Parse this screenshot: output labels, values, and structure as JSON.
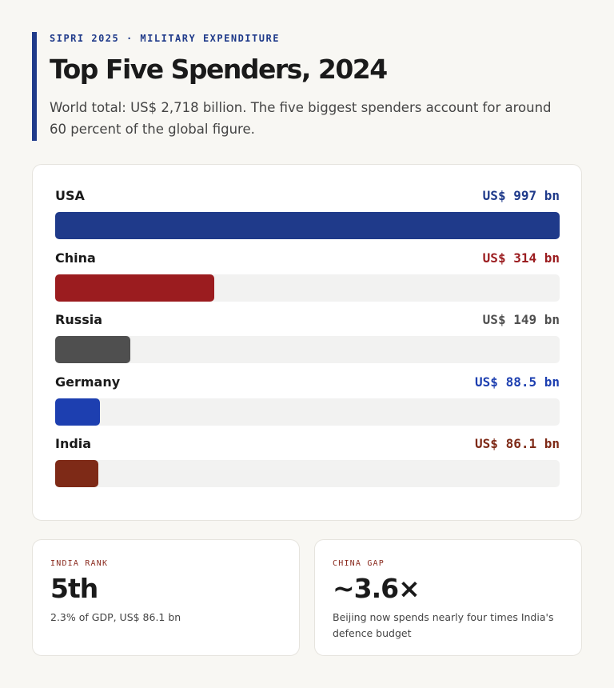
{
  "header": {
    "kicker": "SIPRI 2025 · MILITARY EXPENDITURE",
    "title": "Top Five Spenders, 2024",
    "subtitle": "World total: US$ 2,718 billion. The five biggest spenders account for around 60 percent of the global figure."
  },
  "chart_data": {
    "type": "bar",
    "orientation": "horizontal",
    "unit": "US$ bn",
    "xlim": [
      0,
      997
    ],
    "categories": [
      "USA",
      "China",
      "Russia",
      "Germany",
      "India"
    ],
    "values": [
      997,
      314,
      149,
      88.5,
      86.1
    ],
    "value_labels": [
      "US$ 997 bn",
      "US$ 314 bn",
      "US$ 149 bn",
      "US$ 88.5 bn",
      "US$ 86.1 bn"
    ],
    "colors": [
      "#1f3a8a",
      "#9b1c1f",
      "#4f4f4f",
      "#1d3fb0",
      "#7e2a17"
    ]
  },
  "stats": {
    "india": {
      "label": "INDIA RANK",
      "value": "5th",
      "note": "2.3% of GDP, US$ 86.1 bn"
    },
    "china": {
      "label": "CHINA GAP",
      "value": "~3.6×",
      "note": "Beijing now spends nearly four times India's defence budget"
    }
  }
}
